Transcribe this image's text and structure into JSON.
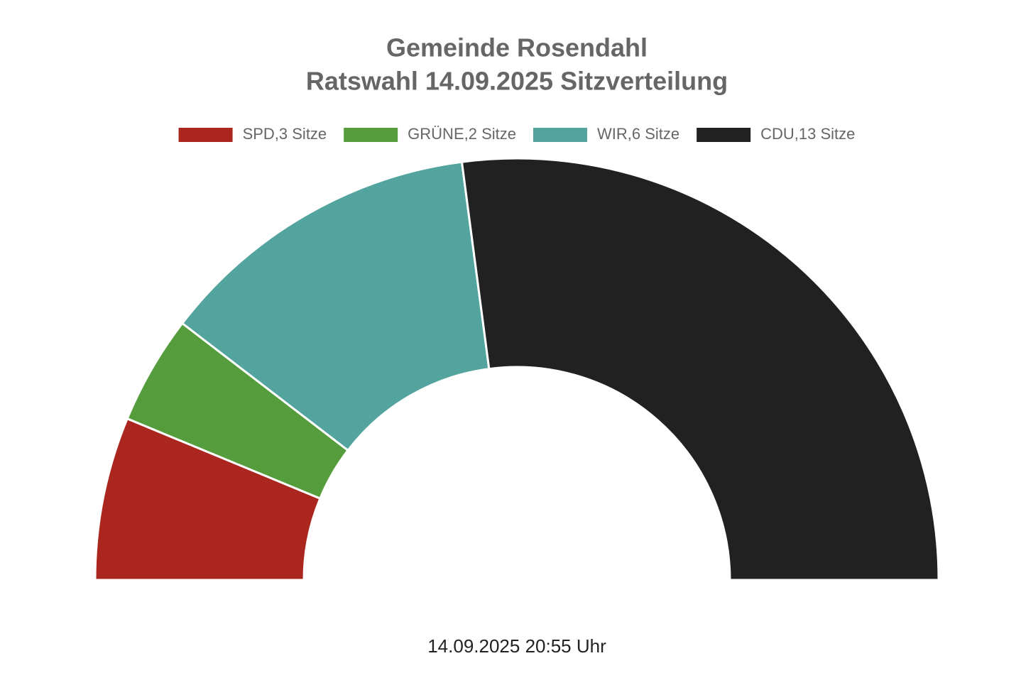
{
  "chart_data": {
    "type": "half-donut",
    "title": [
      "Gemeinde Rosendahl",
      "Ratswahl 14.09.2025 Sitzverteilung"
    ],
    "categories": [
      "SPD,3 Sitze",
      "GRÜNE,2 Sitze",
      "WIR,6 Sitze",
      "CDU,13 Sitze"
    ],
    "values": [
      3,
      2,
      6,
      13
    ],
    "colors": [
      "#aa261e",
      "#559d3c",
      "#53a49e",
      "#212121"
    ],
    "legend": "top",
    "footer": "14.09.2025 20:55 Uhr"
  }
}
